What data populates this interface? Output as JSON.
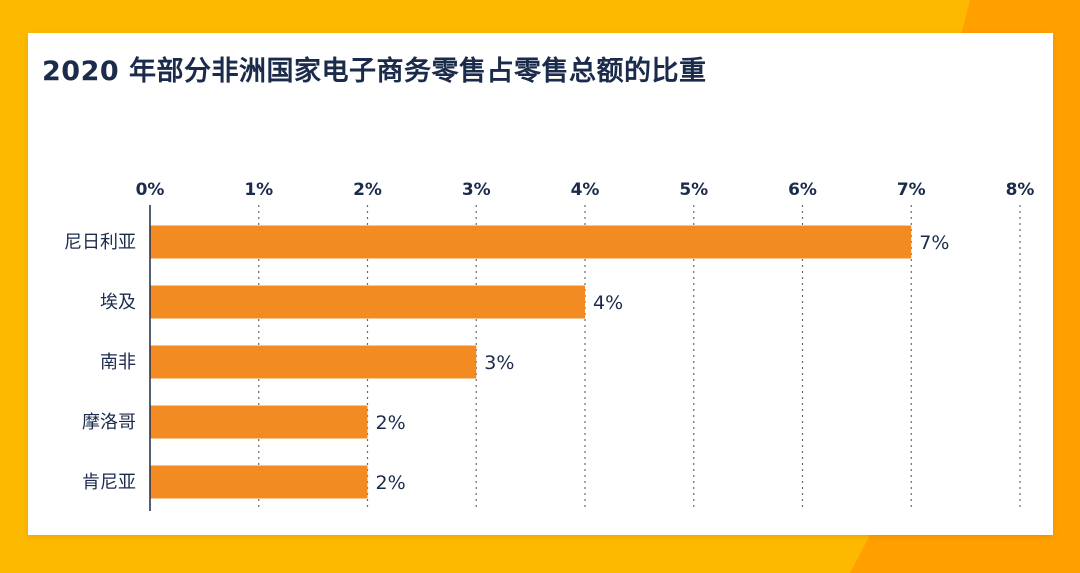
{
  "chart_data": {
    "type": "bar",
    "orientation": "horizontal",
    "title": "2020 年部分非洲国家电子商务零售占零售总额的比重",
    "categories": [
      "尼日利亚",
      "埃及",
      "南非",
      "摩洛哥",
      "肯尼亚"
    ],
    "values": [
      7,
      4,
      3,
      2,
      2
    ],
    "data_labels": [
      "7%",
      "4%",
      "3%",
      "2%",
      "2%"
    ],
    "xlim": [
      0,
      8
    ],
    "tick_labels": [
      "0%",
      "1%",
      "2%",
      "3%",
      "4%",
      "5%",
      "6%",
      "7%",
      "8%"
    ],
    "x_axis_position": "top",
    "grid": "vertical dotted",
    "bar_color": "#F28C22"
  },
  "colors": {
    "background": "#FCB900",
    "accent": "#FF9F00",
    "card": "#FFFFFF",
    "text": "#1B2B4B",
    "bar": "#F28C22"
  }
}
